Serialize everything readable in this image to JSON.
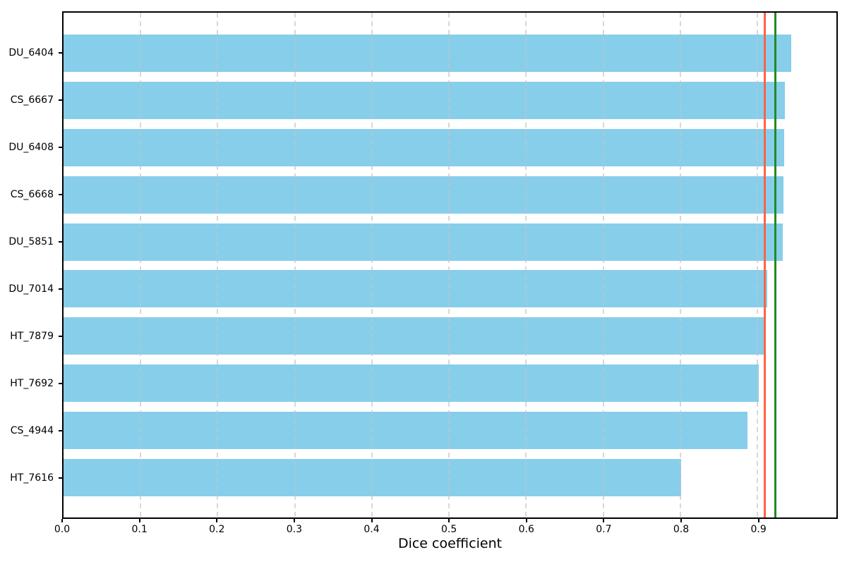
{
  "chart_data": {
    "type": "bar",
    "orientation": "horizontal",
    "xlabel": "Dice coefficient",
    "categories": [
      "DU_6404",
      "CS_6667",
      "DU_6408",
      "CS_6668",
      "DU_5851",
      "DU_7014",
      "HT_7879",
      "HT_7692",
      "CS_4944",
      "HT_7616"
    ],
    "values": [
      0.944,
      0.936,
      0.935,
      0.934,
      0.933,
      0.913,
      0.908,
      0.902,
      0.887,
      0.801
    ],
    "xlim": [
      0,
      1.0025
    ],
    "xticks": [
      0.0,
      0.1,
      0.2,
      0.3,
      0.4,
      0.5,
      0.6,
      0.7,
      0.8,
      0.9
    ],
    "xtick_labels": [
      "0.0",
      "0.1",
      "0.2",
      "0.3",
      "0.4",
      "0.5",
      "0.6",
      "0.7",
      "0.8",
      "0.9"
    ],
    "bar_color": "#87CEEB",
    "grid": {
      "axis": "x",
      "style": "dashed",
      "color": "#c3c3c3"
    },
    "reference_lines": [
      {
        "value": 0.91,
        "color": "#FF6347"
      },
      {
        "value": 0.923,
        "color": "#228B22"
      }
    ],
    "legend": "none"
  }
}
